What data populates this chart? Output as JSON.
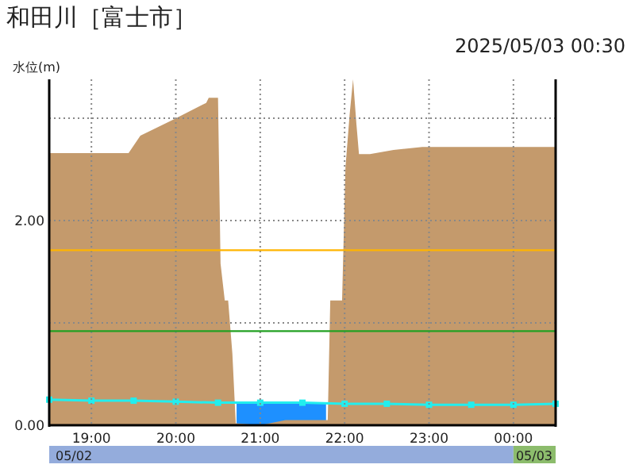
{
  "chart_data": {
    "type": "area",
    "title": "和田川［富士市］",
    "subtitle": "2025/05/03 00:30",
    "ylabel": "水位(m)",
    "xlim": [
      18.5,
      24.5
    ],
    "ylim": [
      0,
      3.38
    ],
    "xticks": [
      {
        "value": 19,
        "label": "19:00"
      },
      {
        "value": 20,
        "label": "20:00"
      },
      {
        "value": 21,
        "label": "21:00"
      },
      {
        "value": 22,
        "label": "22:00"
      },
      {
        "value": 23,
        "label": "23:00"
      },
      {
        "value": 24,
        "label": "00:00"
      }
    ],
    "yticks": [
      {
        "value": 0,
        "label": "0.00"
      },
      {
        "value": 1,
        "label": null
      },
      {
        "value": 2,
        "label": "2.00"
      },
      {
        "value": 3,
        "label": null
      }
    ],
    "grid": true,
    "series": [
      {
        "color": "#1e90ff",
        "x": [
          20.72,
          21.78
        ],
        "values": [
          0.22,
          0.22
        ]
      },
      {
        "color": "#c49a6c",
        "x": [
          18.5,
          19.44,
          19.58,
          19.98,
          20.36,
          20.39,
          20.5,
          20.53,
          20.58,
          20.62,
          20.67,
          20.71,
          21.0,
          21.3,
          21.67,
          21.8,
          21.83,
          21.97,
          22.01,
          22.06,
          22.1,
          22.14,
          22.17,
          22.3,
          22.58,
          22.92,
          24.5
        ],
        "values": [
          2.66,
          2.66,
          2.83,
          2.99,
          3.15,
          3.2,
          3.2,
          1.58,
          1.22,
          1.22,
          0.7,
          0.02,
          0.0,
          0.05,
          0.05,
          0.05,
          1.22,
          1.22,
          2.52,
          3.04,
          3.38,
          2.94,
          2.65,
          2.65,
          2.69,
          2.72,
          2.72
        ]
      },
      {
        "type": "line",
        "color": "#22eeee",
        "marker": "square",
        "x": [
          18.5,
          19,
          19.5,
          20,
          20.5,
          21,
          21.5,
          22,
          22.5,
          23,
          23.5,
          24,
          24.5
        ],
        "values": [
          0.25,
          0.24,
          0.24,
          0.23,
          0.22,
          0.22,
          0.22,
          0.21,
          0.21,
          0.2,
          0.2,
          0.2,
          0.21
        ]
      }
    ],
    "ref_lines": [
      {
        "axis": "y",
        "value": 1.71,
        "color": "#ffb400"
      },
      {
        "axis": "y",
        "value": 0.92,
        "color": "#22a022"
      }
    ],
    "annotations": [
      "05/02",
      "05/03"
    ]
  }
}
